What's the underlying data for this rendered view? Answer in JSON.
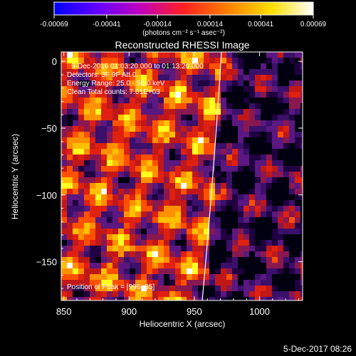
{
  "chart_data": {
    "type": "heatmap",
    "title": "Reconstructed RHESSI Image",
    "xlabel": "Heliocentric X (arcsec)",
    "ylabel": "Heliocentric Y (arcsec)",
    "xlim": [
      848,
      1033
    ],
    "ylim": [
      -179,
      7
    ],
    "x_ticks": [
      850,
      900,
      950,
      1000
    ],
    "y_ticks": [
      0,
      -50,
      -100,
      -150
    ],
    "colorbar": {
      "unit": "(photons cm⁻² s⁻¹ asec⁻²)",
      "range": [
        -0.00069,
        0.00069
      ],
      "tick_values": [
        -0.00069,
        -0.00041,
        -0.00014,
        0.00014,
        0.00041,
        0.00069
      ],
      "tick_labels": [
        "-0.00069",
        "-0.00041",
        "-0.00014",
        "0.00014",
        "0.00041",
        "0.00069"
      ],
      "colors": [
        "#0000ff",
        "#8000ff",
        "#ff00ff",
        "#ff0000",
        "#ffa000",
        "#ffff00",
        "#ffffff"
      ]
    },
    "annotations": [
      "9-Dec-2016 01:03:20.000 to 01:13:20.000",
      "Detectors: 3F 9F   Att 0",
      "Energy Range: 25.0 - 50.0 keV",
      "Clean    Total counts: 7.01E+03"
    ],
    "peak_label": "Position of Peak = [996,-35]",
    "limb_color": "#ffffff",
    "grid": false
  },
  "footer": {
    "timestamp": "5-Dec-2017 08:26"
  }
}
